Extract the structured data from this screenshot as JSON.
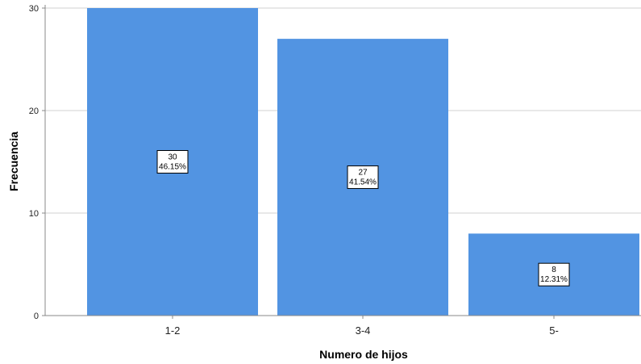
{
  "chart_data": {
    "type": "bar",
    "categories": [
      "1-2",
      "3-4",
      "5-"
    ],
    "values": [
      30,
      27,
      8
    ],
    "percent_labels": [
      "46.15%",
      "41.54%",
      "12.31%"
    ],
    "xlabel": "Numero de hijos",
    "ylabel": "Frecuencia",
    "ylim": [
      0,
      30
    ],
    "yticks": [
      0,
      10,
      20,
      30
    ],
    "grid": true,
    "colors": {
      "bar": "#5294e2",
      "grid": "#d0d0d0",
      "axis": "#888888"
    }
  }
}
